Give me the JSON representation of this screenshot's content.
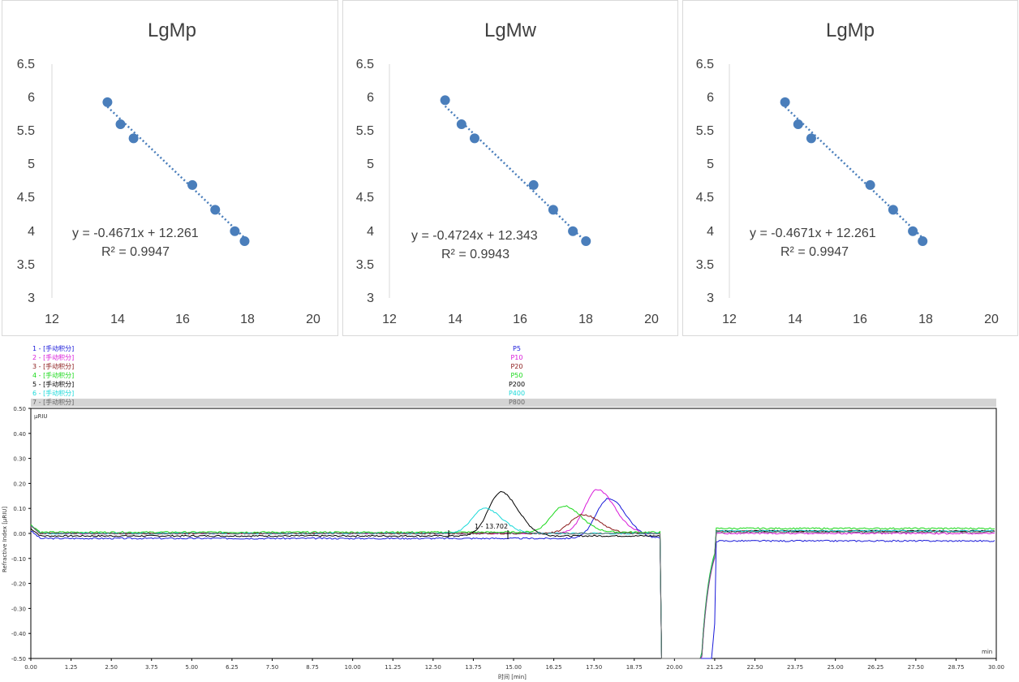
{
  "calibration_panels": [
    {
      "title": "LgMp",
      "x_ticks": [
        "12",
        "16",
        "14",
        "18",
        "20"
      ],
      "y_ticks": [
        "3",
        "3.5",
        "4",
        "4.5",
        "5",
        "5.5",
        "6",
        "6.5"
      ],
      "equation": "y = -0.4671x + 12.261",
      "r2": "R² = 0.9947"
    },
    {
      "title": "LgMw",
      "x_ticks": [
        "12",
        "16",
        "14",
        "18",
        "20"
      ],
      "y_ticks": [
        "3",
        "3.5",
        "4",
        "4.5",
        "5",
        "5.5",
        "6",
        "6.5"
      ],
      "equation": "y = -0.4724x + 12.343",
      "r2": "R² = 0.9943"
    },
    {
      "title": "LgMp",
      "x_ticks": [
        "12",
        "16",
        "14",
        "18",
        "20"
      ],
      "y_ticks": [
        "3",
        "3.5",
        "4",
        "4.5",
        "5",
        "5.5",
        "6",
        "6.5"
      ],
      "equation": "y = -0.4671x + 12.261",
      "r2": "R² = 0.9947"
    }
  ],
  "chromatogram": {
    "legend": [
      {
        "label": "1 - [手动积分]",
        "sample": "P5",
        "color": "#1a1ad9"
      },
      {
        "label": "2 - [手动积分]",
        "sample": "P10",
        "color": "#d91ad9"
      },
      {
        "label": "3 - [手动积分]",
        "sample": "P20",
        "color": "#8b1a1a"
      },
      {
        "label": "4 - [手动积分]",
        "sample": "P50",
        "color": "#1ad91a"
      },
      {
        "label": "5 - [手动积分]",
        "sample": "P200",
        "color": "#000000"
      },
      {
        "label": "6 - [手动积分]",
        "sample": "P400",
        "color": "#1ad9d9"
      },
      {
        "label": "7 - [手动积分]",
        "sample": "P800",
        "color": "#666666"
      }
    ],
    "y_unit": "µRIU",
    "x_unit": "min",
    "y_axis_label": "Refractive Index [µRIU]",
    "x_axis_label": "时间 [min]",
    "peak_annotation": "1 - 13.702",
    "x_ticks": [
      "0.00",
      "1.25",
      "2.50",
      "3.75",
      "5.00",
      "6.25",
      "7.50",
      "8.75",
      "10.00",
      "11.25",
      "12.50",
      "13.75",
      "15.00",
      "16.25",
      "17.50",
      "18.75",
      "20.00",
      "21.25",
      "22.50",
      "23.75",
      "25.00",
      "26.25",
      "27.50",
      "28.75",
      "30.00"
    ],
    "y_ticks": [
      "0.50",
      "0.40",
      "0.30",
      "0.20",
      "0.10",
      "0.00",
      "-0.10",
      "-0.20",
      "-0.30",
      "-0.40",
      "-0.50"
    ]
  },
  "chart_data": [
    {
      "type": "scatter",
      "title": "LgMp",
      "xlim": [
        12,
        20
      ],
      "ylim": [
        3,
        6.5
      ],
      "series": [
        {
          "x": [
            13.7,
            14.1,
            14.5,
            16.3,
            17.0,
            17.6,
            17.9
          ],
          "y": [
            5.93,
            5.6,
            5.39,
            4.69,
            4.32,
            4.0,
            3.85
          ]
        }
      ],
      "trendline": {
        "slope": -0.4671,
        "intercept": 12.261,
        "r2": 0.9947
      }
    },
    {
      "type": "scatter",
      "title": "LgMw",
      "xlim": [
        12,
        20
      ],
      "ylim": [
        3,
        6.5
      ],
      "series": [
        {
          "x": [
            13.7,
            14.2,
            14.6,
            16.4,
            17.0,
            17.6,
            18.0
          ],
          "y": [
            5.96,
            5.6,
            5.39,
            4.69,
            4.32,
            4.0,
            3.85
          ]
        }
      ],
      "trendline": {
        "slope": -0.4724,
        "intercept": 12.343,
        "r2": 0.9943
      }
    },
    {
      "type": "scatter",
      "title": "LgMp",
      "xlim": [
        12,
        20
      ],
      "ylim": [
        3,
        6.5
      ],
      "series": [
        {
          "x": [
            13.7,
            14.1,
            14.5,
            16.3,
            17.0,
            17.6,
            17.9
          ],
          "y": [
            5.93,
            5.6,
            5.39,
            4.69,
            4.32,
            4.0,
            3.85
          ]
        }
      ],
      "trendline": {
        "slope": -0.4671,
        "intercept": 12.261,
        "r2": 0.9947
      }
    },
    {
      "type": "line",
      "xlim": [
        0,
        30
      ],
      "ylim": [
        -0.5,
        0.5
      ],
      "series": [
        {
          "name": "P5",
          "color": "#1a1ad9",
          "baseline": -0.02,
          "peak_x": 17.95,
          "peak_y": 0.16,
          "tail": -0.03
        },
        {
          "name": "P10",
          "color": "#d91ad9",
          "baseline": 0.0,
          "peak_x": 17.6,
          "peak_y": 0.175,
          "tail": 0.0
        },
        {
          "name": "P20",
          "color": "#8b1a1a",
          "baseline": 0.0,
          "peak_x": 17.15,
          "peak_y": 0.075,
          "tail": 0.01
        },
        {
          "name": "P50",
          "color": "#1ad91a",
          "baseline": 0.005,
          "peak_x": 16.55,
          "peak_y": 0.105,
          "tail": 0.02
        },
        {
          "name": "P200",
          "color": "#000000",
          "baseline": -0.01,
          "peak_x": 14.6,
          "peak_y": 0.175,
          "tail": 0.01
        },
        {
          "name": "P400",
          "color": "#1ad9d9",
          "baseline": 0.0,
          "peak_x": 14.1,
          "peak_y": 0.1,
          "tail": 0.01
        },
        {
          "name": "P800",
          "color": "#666666",
          "baseline": 0.0,
          "peak_x": 0,
          "peak_y": 0,
          "tail": 0.005
        }
      ]
    }
  ]
}
